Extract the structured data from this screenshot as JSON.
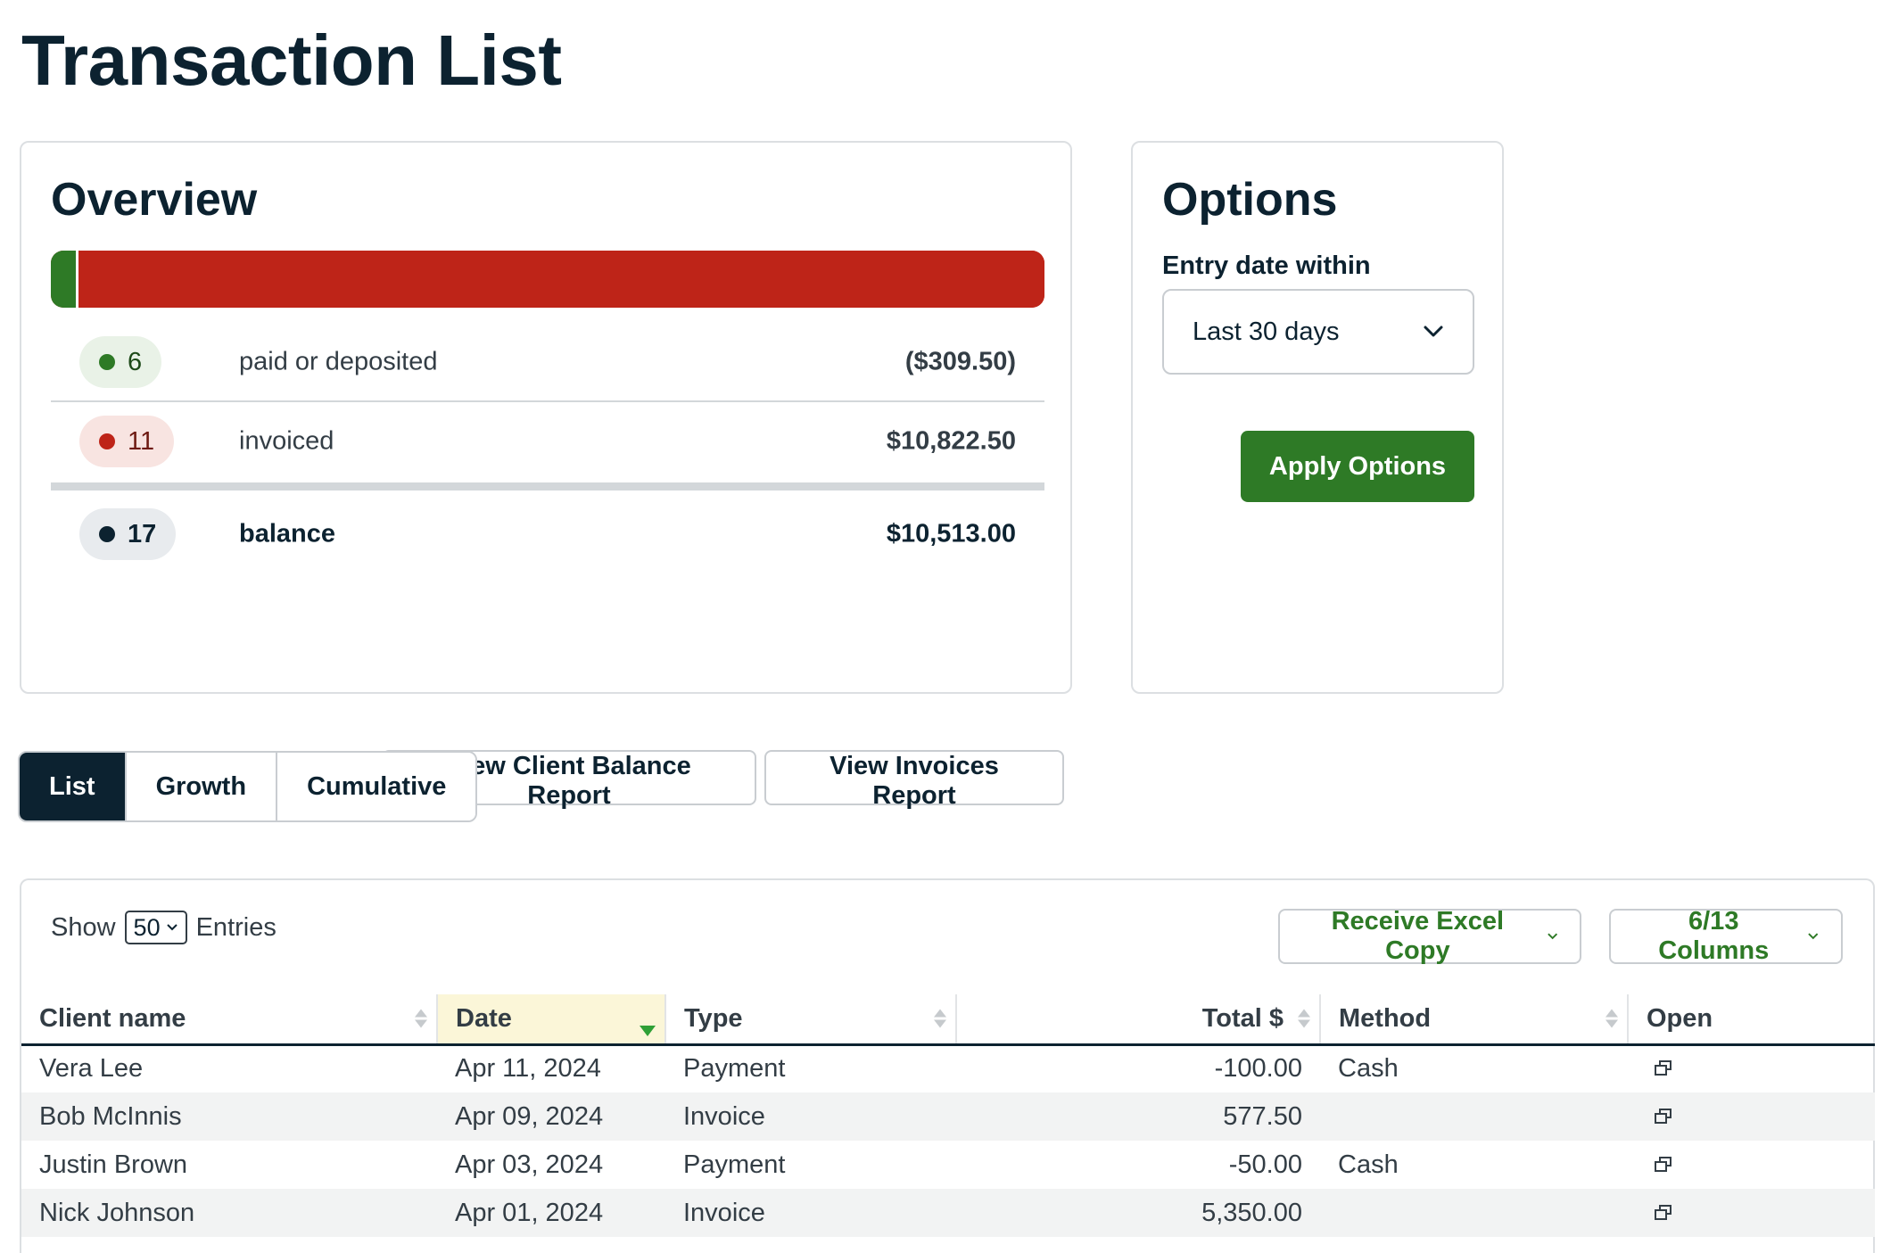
{
  "page_title": "Transaction List",
  "overview": {
    "title": "Overview",
    "bar": {
      "paid_fraction": 0.028,
      "paid_color": "#2e7a26",
      "invoiced_color": "#be2418"
    },
    "rows": [
      {
        "count": "6",
        "label": "paid or deposited",
        "amount": "($309.50)",
        "color": "#2e7a26"
      },
      {
        "count": "11",
        "label": "invoiced",
        "amount": "$10,822.50",
        "color": "#be2418"
      },
      {
        "count": "17",
        "label": "balance",
        "amount": "$10,513.00",
        "color": "#0c2230"
      }
    ],
    "buttons": {
      "client_balance": "View Client Balance Report",
      "invoices": "View Invoices Report"
    }
  },
  "options": {
    "title": "Options",
    "entry_date_label": "Entry date within",
    "entry_date_value": "Last 30 days",
    "apply_label": "Apply Options"
  },
  "tabs": [
    {
      "label": "List",
      "active": true
    },
    {
      "label": "Growth",
      "active": false
    },
    {
      "label": "Cumulative",
      "active": false
    }
  ],
  "table": {
    "show_label": "Show",
    "entries_value": "50",
    "entries_label": "Entries",
    "excel_button": "Receive Excel Copy",
    "columns_button": "6/13 Columns",
    "columns": [
      "Client name",
      "Date",
      "Type",
      "Total $",
      "Method",
      "Open"
    ],
    "sorted_column": "Date",
    "rows": [
      {
        "client": "Vera Lee",
        "date": "Apr 11, 2024",
        "type": "Payment",
        "total": "-100.00",
        "method": "Cash"
      },
      {
        "client": "Bob McInnis",
        "date": "Apr 09, 2024",
        "type": "Invoice",
        "total": "577.50",
        "method": ""
      },
      {
        "client": "Justin Brown",
        "date": "Apr 03, 2024",
        "type": "Payment",
        "total": "-50.00",
        "method": "Cash"
      },
      {
        "client": "Nick Johnson",
        "date": "Apr 01, 2024",
        "type": "Invoice",
        "total": "5,350.00",
        "method": ""
      }
    ]
  },
  "colors": {
    "brand_dark": "#0c2230",
    "accent_green": "#2e7a26",
    "accent_red": "#be2418",
    "sorted_header_bg": "#fbf6d8"
  }
}
